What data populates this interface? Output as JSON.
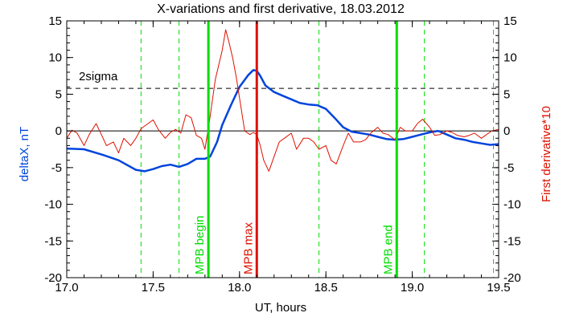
{
  "chart_data": {
    "type": "line",
    "title": "X-variations and first derivative, 18.03.2012",
    "xlabel": "UT, hours",
    "ylabel_left": "deltaX, nT",
    "ylabel_right": "First derivative*10",
    "xlim": [
      17.0,
      19.5
    ],
    "ylim": [
      -20,
      15
    ],
    "x_ticks": [
      "17.0",
      "17.5",
      "18.0",
      "18.5",
      "19.0",
      "19.5"
    ],
    "y_ticks": [
      "15",
      "10",
      "5",
      "0",
      "-5",
      "-10",
      "-15",
      "-20"
    ],
    "grid": false,
    "colors": {
      "deltaX": "#0044dd",
      "derivative": "#dd1100",
      "mpb": "#00dd00",
      "mpb_max": "#dd1100",
      "zero_line": "#000000",
      "sigma_line": "#000000"
    },
    "sigma": {
      "label": "2sigma",
      "y": 5.8
    },
    "series": [
      {
        "key": "deltaX",
        "x": [
          17.0,
          17.1,
          17.2,
          17.3,
          17.4,
          17.45,
          17.5,
          17.55,
          17.6,
          17.65,
          17.7,
          17.75,
          17.8,
          17.83,
          17.87,
          17.9,
          17.95,
          18.0,
          18.05,
          18.08,
          18.1,
          18.12,
          18.15,
          18.2,
          18.25,
          18.3,
          18.35,
          18.4,
          18.45,
          18.5,
          18.55,
          18.6,
          18.65,
          18.7,
          18.75,
          18.8,
          18.85,
          18.9,
          18.95,
          19.0,
          19.05,
          19.1,
          19.15,
          19.2,
          19.25,
          19.3,
          19.35,
          19.4,
          19.45,
          19.5
        ],
        "y": [
          -2.4,
          -2.5,
          -3.2,
          -4.0,
          -5.3,
          -5.5,
          -5.2,
          -4.8,
          -4.6,
          -4.9,
          -4.5,
          -3.8,
          -3.8,
          -3.5,
          -1.5,
          0.8,
          3.5,
          6.0,
          7.6,
          8.3,
          8.2,
          7.5,
          6.2,
          5.3,
          4.8,
          4.3,
          3.8,
          3.6,
          3.5,
          3.0,
          1.8,
          0.5,
          -0.1,
          -0.3,
          -0.5,
          -0.8,
          -1.1,
          -1.2,
          -1.1,
          -0.8,
          -0.5,
          -0.2,
          0.0,
          -0.5,
          -1.0,
          -1.2,
          -1.5,
          -1.7,
          -1.9,
          -1.8
        ]
      },
      {
        "key": "derivative",
        "x": [
          17.0,
          17.03,
          17.06,
          17.1,
          17.13,
          17.17,
          17.2,
          17.23,
          17.27,
          17.3,
          17.33,
          17.37,
          17.4,
          17.43,
          17.47,
          17.5,
          17.53,
          17.57,
          17.6,
          17.63,
          17.66,
          17.69,
          17.72,
          17.75,
          17.78,
          17.8,
          17.83,
          17.86,
          17.9,
          17.92,
          17.94,
          17.96,
          17.98,
          18.0,
          18.03,
          18.06,
          18.08,
          18.1,
          18.12,
          18.14,
          18.17,
          18.2,
          18.23,
          18.26,
          18.3,
          18.33,
          18.37,
          18.4,
          18.43,
          18.46,
          18.5,
          18.53,
          18.56,
          18.6,
          18.63,
          18.66,
          18.7,
          18.73,
          18.76,
          18.8,
          18.83,
          18.86,
          18.9,
          18.93,
          18.96,
          19.0,
          19.03,
          19.06,
          19.1,
          19.13,
          19.16,
          19.2,
          19.23,
          19.26,
          19.3,
          19.33,
          19.36,
          19.4,
          19.43,
          19.46,
          19.5
        ],
        "y": [
          -1.0,
          0.1,
          -0.3,
          -2.0,
          -0.5,
          1.0,
          -0.5,
          -2.0,
          -1.5,
          -3.0,
          -1.0,
          -2.0,
          -1.0,
          0.3,
          1.0,
          1.5,
          0.2,
          -1.0,
          -0.2,
          0.2,
          -0.3,
          2.2,
          1.8,
          -0.6,
          -1.0,
          -2.5,
          2.0,
          7.0,
          11.0,
          13.8,
          12.0,
          10.0,
          7.5,
          4.5,
          0.0,
          -0.5,
          -0.2,
          -0.5,
          -2.0,
          -4.0,
          -5.5,
          -3.5,
          -1.5,
          -1.0,
          -0.3,
          -2.5,
          -1.0,
          -1.0,
          -1.5,
          -2.5,
          -2.0,
          -4.0,
          -4.5,
          -2.0,
          -0.3,
          -1.5,
          -1.5,
          -1.2,
          -0.3,
          0.5,
          -0.3,
          -0.5,
          -1.2,
          0.5,
          0.0,
          0.0,
          1.0,
          1.6,
          0.5,
          -0.6,
          -0.5,
          0.0,
          -0.2,
          -0.6,
          -0.8,
          -0.6,
          -0.3,
          -1.0,
          -0.5,
          0.0,
          0.2
        ]
      }
    ],
    "markers": [
      {
        "x": 17.82,
        "label": "MPB begin",
        "color": "mpb",
        "style": "solid"
      },
      {
        "x": 18.1,
        "label": "MPB max",
        "color": "mpb_max",
        "style": "solid"
      },
      {
        "x": 18.91,
        "label": "MPB end",
        "color": "mpb",
        "style": "solid"
      }
    ],
    "dashed_markers": [
      17.43,
      17.65,
      18.46,
      19.07,
      19.47
    ]
  }
}
